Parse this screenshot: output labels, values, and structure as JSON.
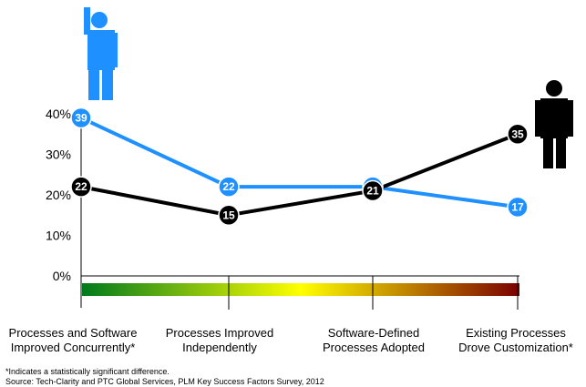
{
  "chart_data": {
    "type": "line",
    "categories": [
      [
        "Processes and Software",
        "Improved Concurrently*"
      ],
      [
        "Processes Improved",
        "Independently"
      ],
      [
        "Software-Defined",
        "Processes Adopted"
      ],
      [
        "Existing Processes",
        "Drove Customization*"
      ]
    ],
    "series": [
      {
        "values": [
          39,
          22,
          22,
          17
        ],
        "color": "#1e90ff"
      },
      {
        "values": [
          22,
          15,
          21,
          35
        ],
        "color": "#000000"
      }
    ],
    "y_ticks": [
      "0%",
      "10%",
      "20%",
      "30%",
      "40%"
    ],
    "ylim": [
      0,
      40
    ],
    "grid": false,
    "gradient_bar": [
      "#007a1c",
      "#ffff00",
      "#7a0000"
    ],
    "icons": [
      {
        "name": "person-raising-hand-icon",
        "color": "#1e90ff"
      },
      {
        "name": "person-standing-icon",
        "color": "#000000"
      }
    ]
  },
  "footnotes": {
    "significance": "*Indicates a statistically significant difference.",
    "source": "Source: Tech-Clarity and PTC Global Services, PLM Key Success Factors Survey, 2012"
  }
}
